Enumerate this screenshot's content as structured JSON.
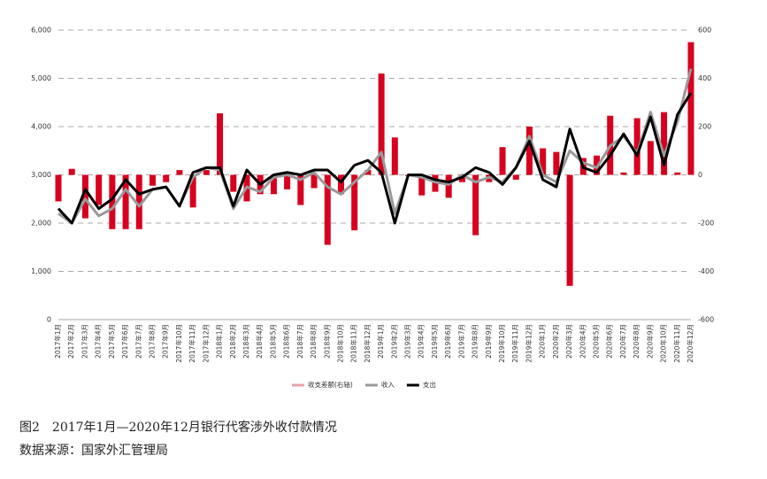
{
  "chart_data": {
    "type": "bar",
    "categories": [
      "2017年1月",
      "2017年2月",
      "2017年3月",
      "2017年4月",
      "2017年5月",
      "2017年6月",
      "2017年7月",
      "2017年8月",
      "2017年9月",
      "2017年10月",
      "2017年11月",
      "2017年12月",
      "2018年1月",
      "2018年2月",
      "2018年3月",
      "2018年4月",
      "2018年5月",
      "2018年6月",
      "2018年7月",
      "2018年8月",
      "2018年9月",
      "2018年10月",
      "2018年11月",
      "2018年12月",
      "2019年1月",
      "2019年2月",
      "2019年3月",
      "2019年4月",
      "2019年5月",
      "2019年6月",
      "2019年7月",
      "2019年8月",
      "2019年9月",
      "2019年10月",
      "2019年11月",
      "2019年12月",
      "2020年1月",
      "2020年2月",
      "2020年3月",
      "2020年4月",
      "2020年5月",
      "2020年6月",
      "2020年7月",
      "2020年8月",
      "2020年9月",
      "2020年10月",
      "2020年11月",
      "2020年12月"
    ],
    "series": [
      {
        "name": "收支差额(右轴)",
        "type": "bar",
        "axis": "y2",
        "color": "#d7001e",
        "legend_color": "#e8a3ab",
        "values": [
          -110,
          25,
          -180,
          -125,
          -225,
          -225,
          -225,
          -45,
          -30,
          20,
          -135,
          20,
          255,
          -70,
          -110,
          -80,
          -80,
          -60,
          -125,
          -55,
          -290,
          -80,
          -230,
          20,
          420,
          155,
          -5,
          -85,
          -70,
          -95,
          -30,
          -250,
          -30,
          115,
          -20,
          200,
          110,
          95,
          -460,
          70,
          80,
          245,
          10,
          235,
          140,
          260,
          10,
          550
        ]
      },
      {
        "name": "收入",
        "type": "line",
        "color": "#999999",
        "values": [
          2200,
          2000,
          2500,
          2150,
          2300,
          2700,
          2350,
          2700,
          2750,
          2350,
          2950,
          3150,
          3100,
          2300,
          2750,
          2650,
          2950,
          3000,
          2900,
          3050,
          2750,
          2600,
          2850,
          3100,
          3470,
          2200,
          3000,
          2950,
          2850,
          2800,
          3000,
          2850,
          2950,
          2850,
          3150,
          3800,
          3000,
          2850,
          3500,
          3250,
          3150,
          3600,
          3800,
          3450,
          4300,
          3400,
          4100,
          5200
        ]
      },
      {
        "name": "支出",
        "type": "line",
        "color": "#000000",
        "values": [
          2300,
          2000,
          2700,
          2300,
          2500,
          2900,
          2600,
          2700,
          2750,
          2350,
          3050,
          3150,
          3150,
          2350,
          3100,
          2800,
          3000,
          3050,
          3000,
          3100,
          3100,
          2850,
          3200,
          3300,
          3050,
          2000,
          3000,
          3000,
          2900,
          2850,
          2950,
          3150,
          3050,
          2800,
          3150,
          3700,
          2900,
          2750,
          3950,
          3150,
          3050,
          3400,
          3850,
          3400,
          4200,
          3200,
          4250,
          4700
        ]
      }
    ],
    "ylim": [
      0,
      6000
    ],
    "yticks": [
      0,
      {
        "value": 1000,
        "label": "1,000"
      },
      {
        "value": 2000,
        "label": "2,000"
      },
      {
        "value": 3000,
        "label": "3,000"
      },
      {
        "value": 4000,
        "label": "4,000"
      },
      {
        "value": 5000,
        "label": "5,000"
      },
      {
        "value": 6000,
        "label": "6,000"
      }
    ],
    "y2lim": [
      -600,
      600
    ],
    "y2ticks": [
      -600,
      -400,
      -200,
      0,
      200,
      400,
      600
    ],
    "grid": true,
    "legend": "bottom",
    "caption": "图2　2017年1月—2020年12月银行代客涉外收付款情况",
    "source": "数据来源：国家外汇管理局"
  }
}
